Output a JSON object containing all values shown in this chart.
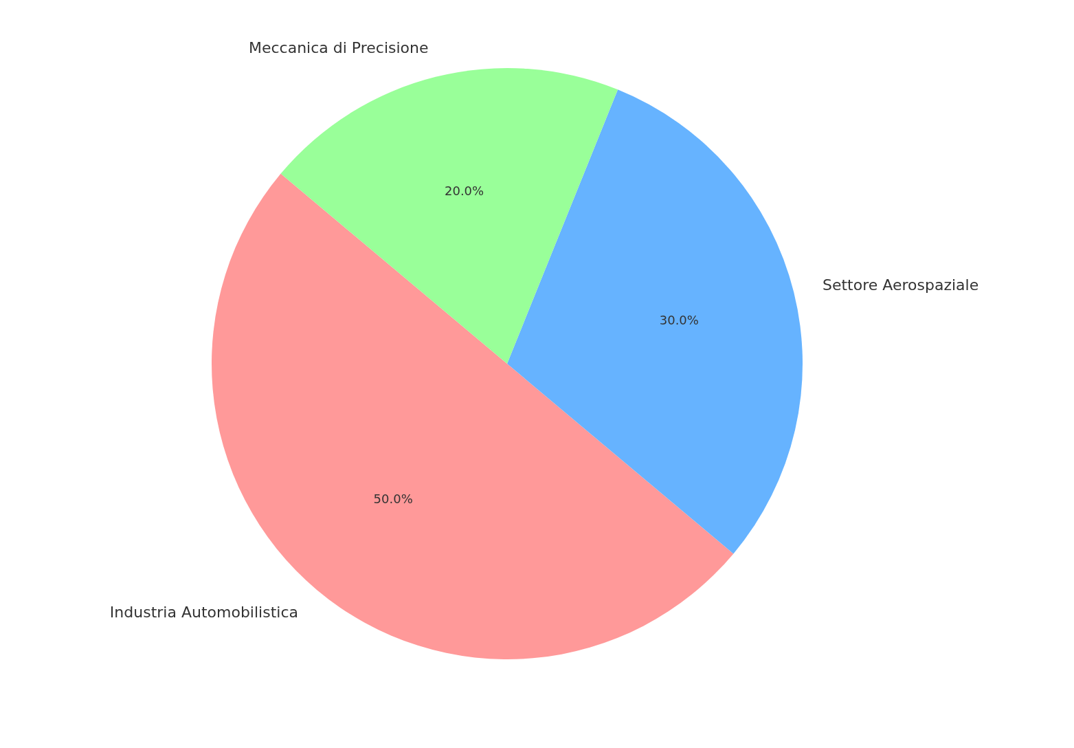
{
  "chart_data": {
    "type": "pie",
    "categories": [
      "Industria Automobilistica",
      "Settore Aerospaziale",
      "Meccanica di Precisione"
    ],
    "values": [
      50,
      30,
      20
    ],
    "colors": [
      "#ff9999",
      "#66b3ff",
      "#99ff99"
    ],
    "value_labels": [
      "50.0%",
      "30.0%",
      "20.0%"
    ]
  }
}
